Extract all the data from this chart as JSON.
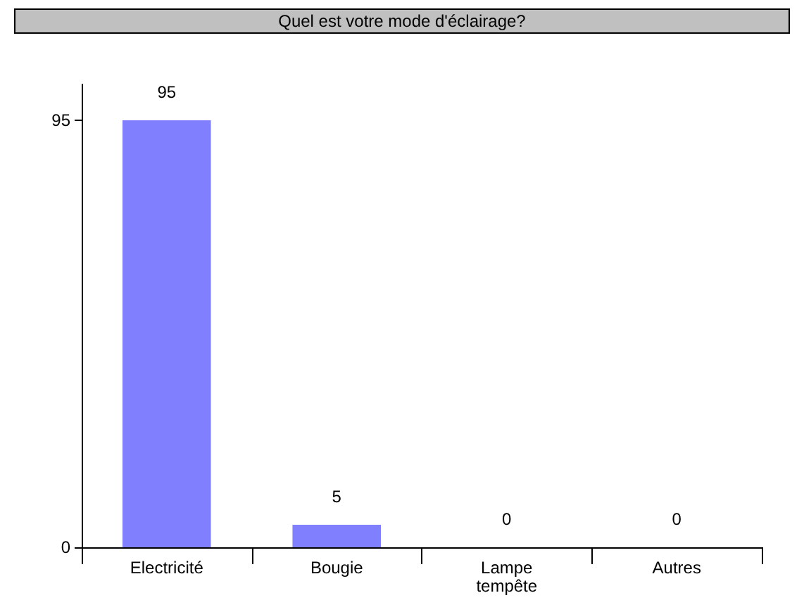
{
  "chart_data": {
    "type": "bar",
    "title": "Quel est votre mode d'éclairage?",
    "categories": [
      "Electricité",
      "Bougie",
      "Lampe\ntempête",
      "Autres"
    ],
    "values": [
      95,
      5,
      0,
      0
    ],
    "color": "#8080ff",
    "ylim": [
      0,
      103
    ],
    "yticks": [
      0,
      95
    ],
    "data_labels": true,
    "grid": false
  }
}
